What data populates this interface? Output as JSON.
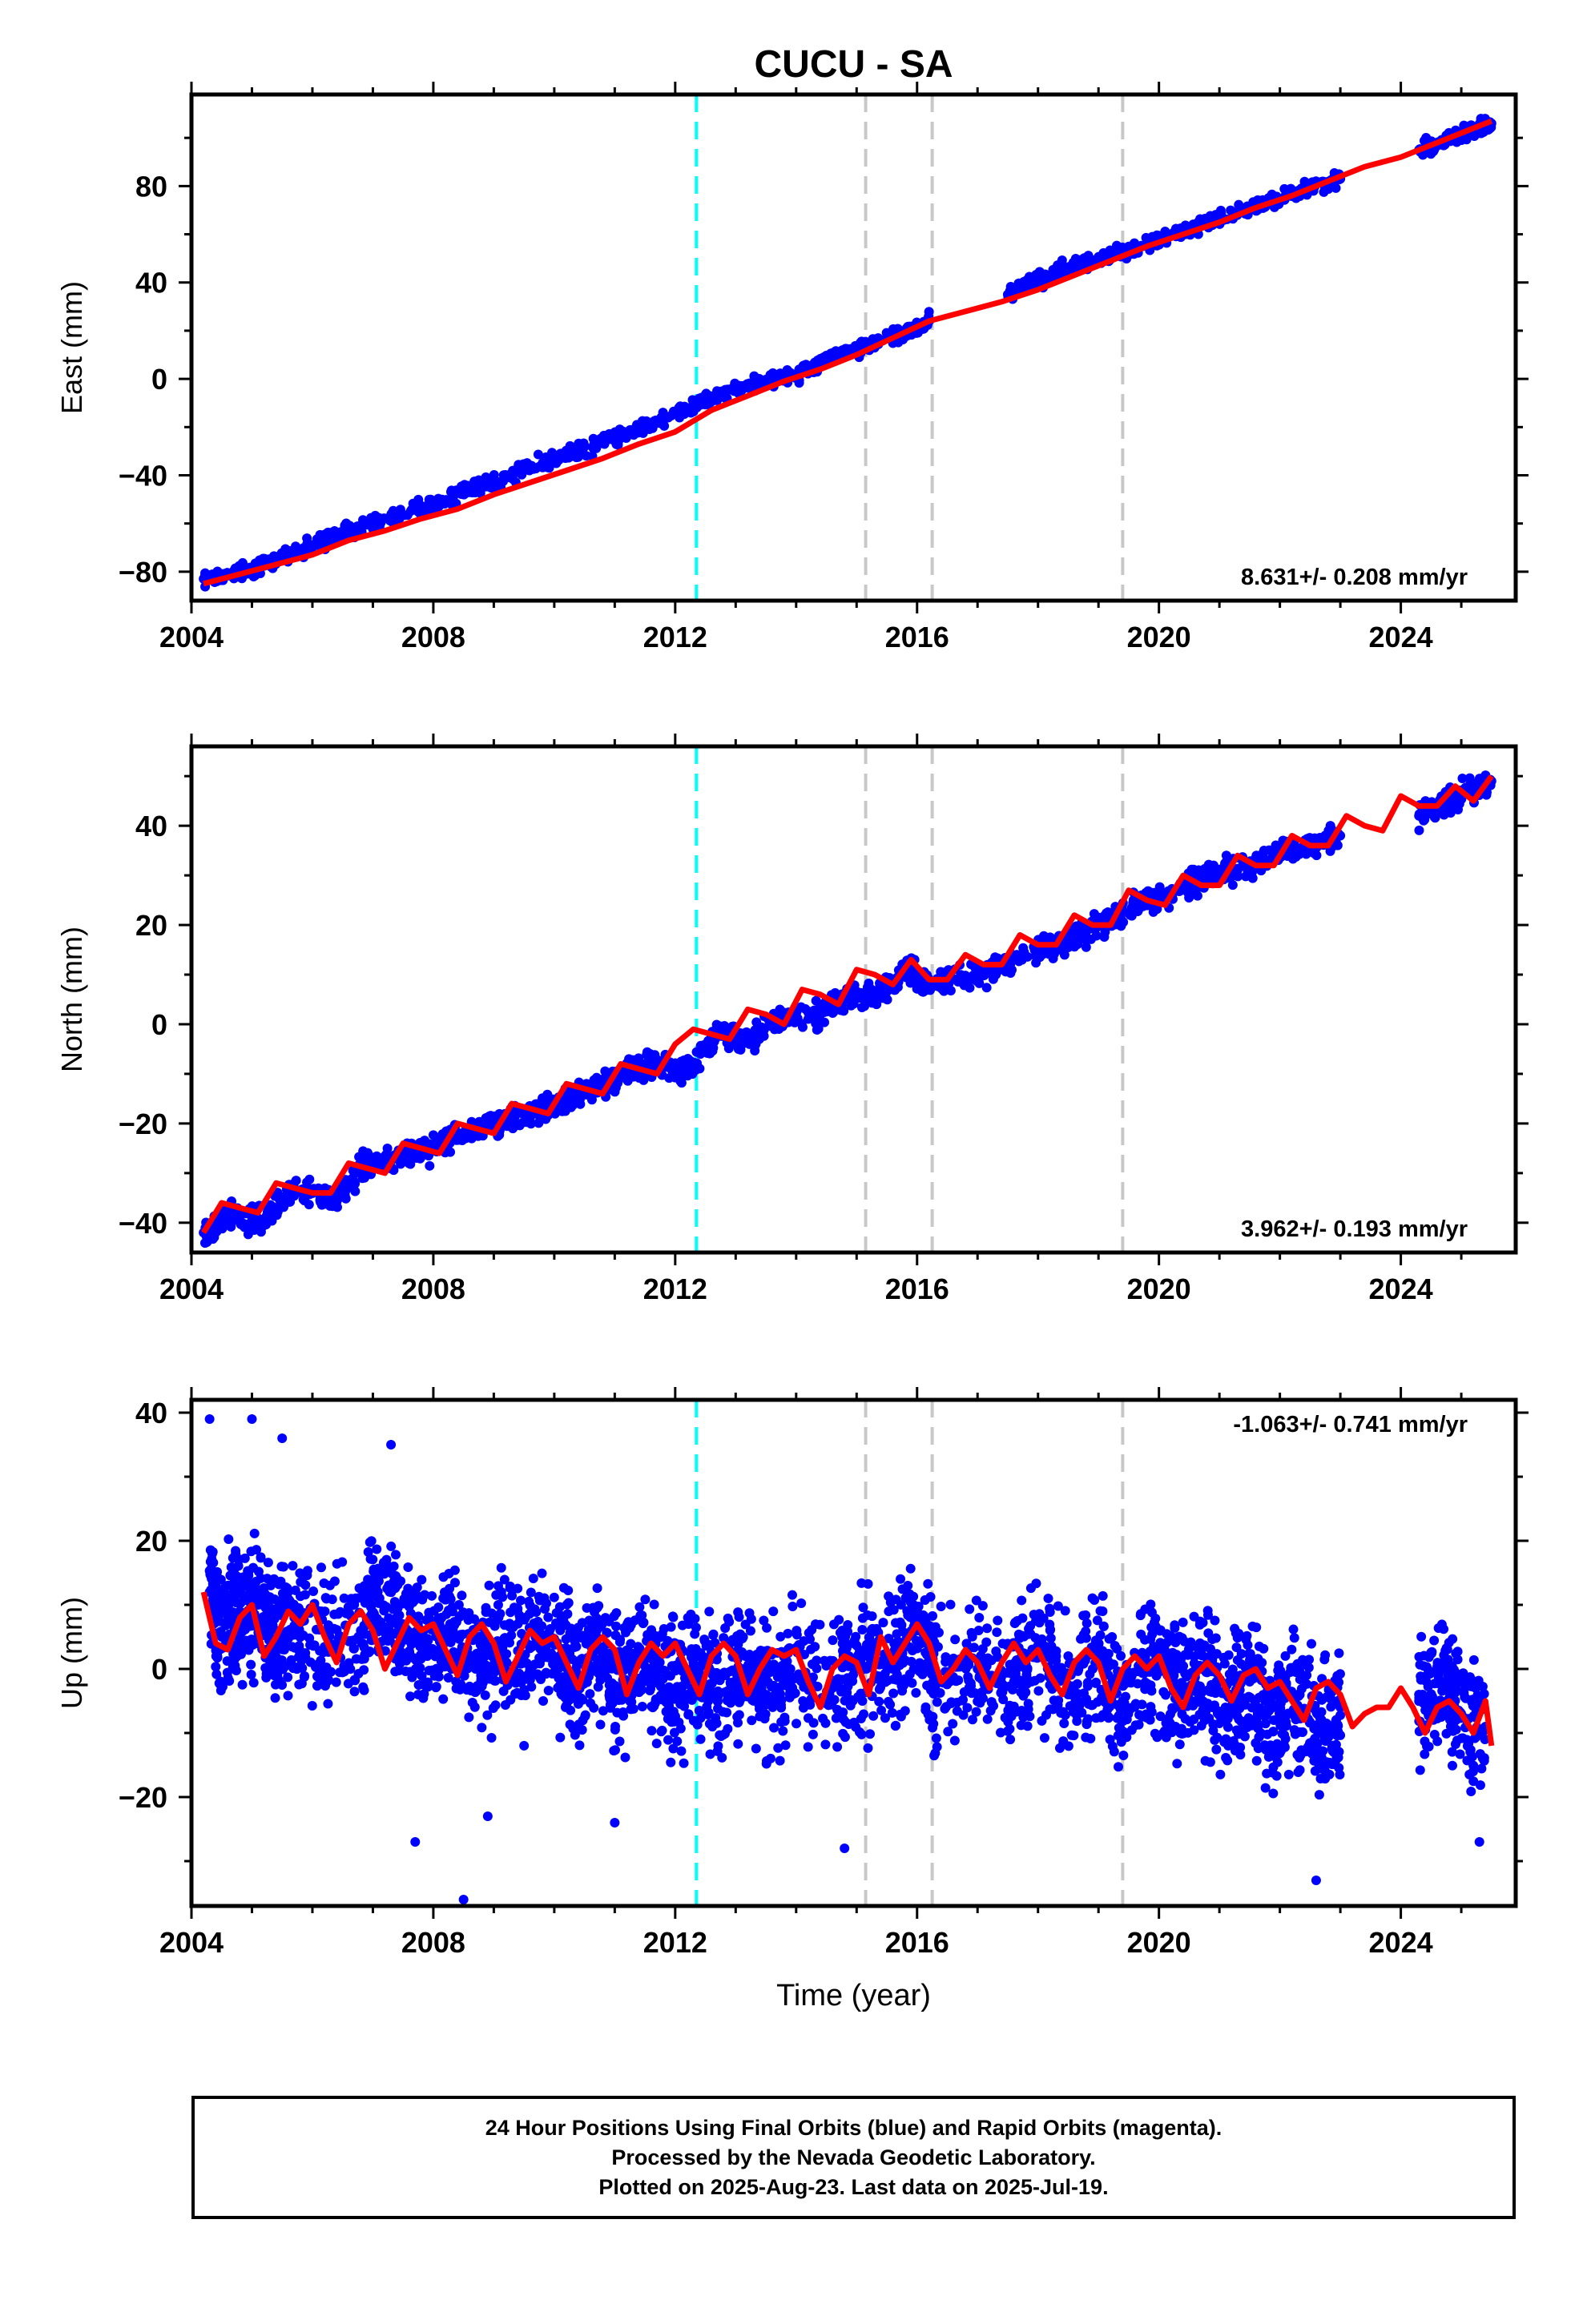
{
  "chart_data": [
    {
      "type": "scatter",
      "title": "CUCU - SA",
      "ylabel": "East (mm)",
      "xlabel": "",
      "xlim": [
        2004.0,
        2025.9
      ],
      "ylim": [
        -92,
        118
      ],
      "xticks": [
        2004,
        2008,
        2012,
        2016,
        2020,
        2024
      ],
      "yticks": [
        -80,
        -40,
        0,
        40,
        80
      ],
      "rate_label": "8.631+/- 0.208 mm/yr",
      "rate_position": "bottom-right",
      "series": [
        {
          "name": "",
          "color": "#0000ff",
          "kind": "points",
          "x": [
            2004.2,
            2005.0,
            2005.7,
            2006.5,
            2007.3,
            2008.0,
            2008.7,
            2009.5,
            2010.2,
            2011.0,
            2011.7,
            2012.5,
            2013.3,
            2014.0,
            2014.5,
            2015.2,
            2015.8,
            2016.2,
            2017.5,
            2018.0,
            2018.5,
            2019.3,
            2020.0,
            2020.7,
            2021.5,
            2022.2,
            2023.0,
            2024.3,
            2025.0,
            2025.5
          ],
          "y": [
            -83,
            -79,
            -72,
            -64,
            -58,
            -52,
            -45,
            -38,
            -31,
            -25,
            -18,
            -9,
            -2,
            2,
            8,
            14,
            19,
            24,
            35,
            41,
            46,
            52,
            58,
            64,
            71,
            77,
            83,
            95,
            101,
            106
          ]
        }
      ],
      "fit_color": "#ff0000",
      "fit": {
        "x": [
          2004.2,
          2004.8,
          2005.4,
          2006.0,
          2006.6,
          2007.2,
          2007.8,
          2008.4,
          2009.0,
          2009.6,
          2010.2,
          2010.8,
          2011.4,
          2012.0,
          2012.6,
          2013.2,
          2013.8,
          2014.4,
          2015.0,
          2015.6,
          2016.2,
          2016.8,
          2017.4,
          2018.0,
          2018.6,
          2019.2,
          2019.8,
          2020.4,
          2021.0,
          2021.6,
          2022.2,
          2022.8,
          2023.4,
          2024.0,
          2024.6,
          2025.2,
          2025.5
        ],
        "y": [
          -85,
          -81,
          -77,
          -73,
          -67,
          -63,
          -58,
          -54,
          -48,
          -43,
          -38,
          -33,
          -27,
          -22,
          -13,
          -7,
          -1,
          4,
          10,
          17,
          24,
          28,
          32,
          37,
          43,
          49,
          55,
          60,
          65,
          71,
          76,
          82,
          88,
          92,
          98,
          104,
          107
        ]
      }
    },
    {
      "type": "scatter",
      "title": "",
      "ylabel": "North (mm)",
      "xlabel": "",
      "xlim": [
        2004.0,
        2025.9
      ],
      "ylim": [
        -46,
        56
      ],
      "xticks": [
        2004,
        2008,
        2012,
        2016,
        2020,
        2024
      ],
      "yticks": [
        -40,
        -20,
        0,
        20,
        40
      ],
      "rate_label": "3.962+/- 0.193 mm/yr",
      "rate_position": "bottom-right",
      "series": [
        {
          "name": "",
          "color": "#0000ff",
          "kind": "points",
          "x": [
            2004.2,
            2004.7,
            2005.2,
            2005.7,
            2006.4,
            2006.9,
            2007.4,
            2008.0,
            2008.5,
            2009.0,
            2009.6,
            2010.1,
            2010.6,
            2011.2,
            2011.7,
            2012.2,
            2012.7,
            2013.2,
            2013.8,
            2014.4,
            2014.9,
            2015.4,
            2015.9,
            2016.2,
            2017.0,
            2018.0,
            2018.6,
            2019.1,
            2019.7,
            2020.2,
            2020.8,
            2021.3,
            2021.9,
            2022.4,
            2023.0,
            2024.3,
            2024.8,
            2025.5
          ],
          "y": [
            -42,
            -38,
            -40,
            -33,
            -35,
            -28,
            -27,
            -25,
            -22,
            -20,
            -18,
            -16,
            -13,
            -10,
            -8,
            -9,
            -2,
            -3,
            1,
            2,
            6,
            6,
            11,
            8,
            10,
            15,
            17,
            21,
            24,
            26,
            30,
            31,
            34,
            36,
            38,
            42,
            45,
            49
          ]
        }
      ],
      "fit_color": "#ff0000",
      "fit": {
        "x": [
          2004.2,
          2004.5,
          2004.8,
          2005.1,
          2005.4,
          2005.7,
          2006.0,
          2006.3,
          2006.6,
          2006.9,
          2007.2,
          2007.5,
          2007.8,
          2008.1,
          2008.4,
          2008.7,
          2009.0,
          2009.3,
          2009.6,
          2009.9,
          2010.2,
          2010.5,
          2010.8,
          2011.1,
          2011.4,
          2011.7,
          2012.0,
          2012.3,
          2012.6,
          2012.9,
          2013.2,
          2013.5,
          2013.8,
          2014.1,
          2014.4,
          2014.7,
          2015.0,
          2015.3,
          2015.6,
          2015.9,
          2016.2,
          2016.5,
          2016.8,
          2017.1,
          2017.4,
          2017.7,
          2018.0,
          2018.3,
          2018.6,
          2018.9,
          2019.2,
          2019.5,
          2019.8,
          2020.1,
          2020.4,
          2020.7,
          2021.0,
          2021.3,
          2021.6,
          2021.9,
          2022.2,
          2022.5,
          2022.8,
          2023.1,
          2023.4,
          2023.7,
          2024.0,
          2024.3,
          2024.6,
          2024.9,
          2025.2,
          2025.5
        ],
        "y": [
          -42,
          -36,
          -37,
          -38,
          -32,
          -33,
          -34,
          -34,
          -28,
          -29,
          -30,
          -24,
          -25,
          -26,
          -20,
          -21,
          -22,
          -16,
          -17,
          -18,
          -12,
          -13,
          -14,
          -8,
          -9,
          -10,
          -4,
          -1,
          -2,
          -3,
          3,
          2,
          0,
          7,
          6,
          4,
          11,
          10,
          8,
          13,
          9,
          9,
          14,
          12,
          12,
          18,
          16,
          16,
          22,
          20,
          20,
          27,
          25,
          24,
          30,
          28,
          28,
          34,
          32,
          32,
          38,
          36,
          36,
          42,
          40,
          39,
          46,
          44,
          44,
          48,
          45,
          50
        ]
      }
    },
    {
      "type": "scatter",
      "title": "",
      "ylabel": "Up (mm)",
      "xlabel": "Time (year)",
      "xlim": [
        2004.0,
        2025.9
      ],
      "ylim": [
        -37,
        42
      ],
      "xticks": [
        2004,
        2008,
        2012,
        2016,
        2020,
        2024
      ],
      "yticks": [
        -20,
        0,
        20,
        40
      ],
      "rate_label": "-1.063+/- 0.741 mm/yr",
      "rate_position": "top-right",
      "series": [
        {
          "name": "",
          "color": "#0000ff",
          "kind": "points",
          "x": [
            2004.3,
            2004.5,
            2004.8,
            2005.1,
            2005.4,
            2005.7,
            2006.2,
            2006.8,
            2007.1,
            2007.5,
            2007.9,
            2008.3,
            2008.7,
            2009.1,
            2009.5,
            2009.9,
            2010.3,
            2010.7,
            2011.1,
            2011.5,
            2011.9,
            2012.3,
            2012.7,
            2013.1,
            2013.5,
            2013.9,
            2014.6,
            2015.1,
            2015.6,
            2016.0,
            2016.3,
            2017.0,
            2017.6,
            2018.0,
            2018.5,
            2019.0,
            2019.4,
            2019.9,
            2020.3,
            2020.7,
            2021.1,
            2021.5,
            2021.9,
            2022.3,
            2022.7,
            2023.0,
            2024.3,
            2024.7,
            2025.0,
            2025.4
          ],
          "y": [
            12,
            5,
            9,
            10,
            4,
            8,
            3,
            6,
            11,
            7,
            2,
            6,
            0,
            4,
            1,
            5,
            -2,
            3,
            -3,
            2,
            -4,
            1,
            -5,
            0,
            -4,
            -1,
            -3,
            2,
            0,
            6,
            -1,
            0,
            -2,
            3,
            -4,
            2,
            -5,
            1,
            -3,
            0,
            -6,
            -2,
            -8,
            -4,
            -10,
            -6,
            -4,
            -2,
            -7,
            -9
          ],
          "outliers_x": [
            2004.3,
            2005.0,
            2005.5,
            2007.3,
            2008.5,
            2007.7,
            2008.9,
            2011.0,
            2014.8,
            2022.6,
            2025.3
          ],
          "outliers_y": [
            39,
            39,
            36,
            35,
            -36,
            -27,
            -23,
            -24,
            -28,
            -33,
            -27
          ]
        }
      ],
      "fit_color": "#ff0000",
      "fit": {
        "x": [
          2004.2,
          2004.4,
          2004.6,
          2004.8,
          2005.0,
          2005.2,
          2005.4,
          2005.6,
          2005.8,
          2006.0,
          2006.2,
          2006.4,
          2006.6,
          2006.8,
          2007.0,
          2007.2,
          2007.4,
          2007.6,
          2007.8,
          2008.0,
          2008.2,
          2008.4,
          2008.6,
          2008.8,
          2009.0,
          2009.2,
          2009.4,
          2009.6,
          2009.8,
          2010.0,
          2010.2,
          2010.4,
          2010.6,
          2010.8,
          2011.0,
          2011.2,
          2011.4,
          2011.6,
          2011.8,
          2012.0,
          2012.2,
          2012.4,
          2012.6,
          2012.8,
          2013.0,
          2013.2,
          2013.4,
          2013.6,
          2013.8,
          2014.0,
          2014.2,
          2014.4,
          2014.6,
          2014.8,
          2015.0,
          2015.2,
          2015.4,
          2015.6,
          2015.8,
          2016.0,
          2016.2,
          2016.4,
          2016.6,
          2016.8,
          2017.0,
          2017.2,
          2017.4,
          2017.6,
          2017.8,
          2018.0,
          2018.2,
          2018.4,
          2018.6,
          2018.8,
          2019.0,
          2019.2,
          2019.4,
          2019.6,
          2019.8,
          2020.0,
          2020.2,
          2020.4,
          2020.6,
          2020.8,
          2021.0,
          2021.2,
          2021.4,
          2021.6,
          2021.8,
          2022.0,
          2022.2,
          2022.4,
          2022.6,
          2022.8,
          2023.0,
          2023.2,
          2023.4,
          2023.6,
          2023.8,
          2024.0,
          2024.2,
          2024.4,
          2024.6,
          2024.8,
          2025.0,
          2025.2,
          2025.4,
          2025.5
        ],
        "y": [
          12,
          4,
          3,
          8,
          10,
          2,
          5,
          9,
          7,
          10,
          5,
          1,
          7,
          9,
          6,
          0,
          4,
          8,
          6,
          7,
          3,
          -1,
          5,
          7,
          4,
          -2,
          2,
          6,
          4,
          5,
          1,
          -3,
          3,
          5,
          3,
          -4,
          1,
          4,
          2,
          4,
          0,
          -4,
          2,
          4,
          2,
          -4,
          0,
          3,
          2,
          3,
          -2,
          -6,
          0,
          2,
          1,
          -4,
          5,
          1,
          4,
          7,
          4,
          -2,
          0,
          3,
          1,
          -3,
          1,
          4,
          1,
          3,
          -1,
          -4,
          1,
          3,
          1,
          -5,
          0,
          2,
          0,
          2,
          -3,
          -6,
          -1,
          1,
          -1,
          -5,
          -1,
          0,
          -3,
          -2,
          -5,
          -8,
          -3,
          -2,
          -4,
          -9,
          -7,
          -6,
          -6,
          -3,
          -6,
          -10,
          -6,
          -5,
          -7,
          -10,
          -5,
          -12
        ]
      }
    }
  ],
  "event_lines": {
    "cyan_x": [
      2012.35
    ],
    "gray_x": [
      2015.15,
      2016.25,
      2019.4
    ],
    "cyan_color": "#00ffff",
    "gray_color": "#c8c8c8"
  },
  "footer": {
    "line1": "24 Hour Positions Using Final Orbits (blue) and Rapid Orbits (magenta).",
    "line2": "Processed by the Nevada Geodetic Laboratory.",
    "line3": "Plotted on 2025-Aug-23. Last data on 2025-Jul-19."
  }
}
